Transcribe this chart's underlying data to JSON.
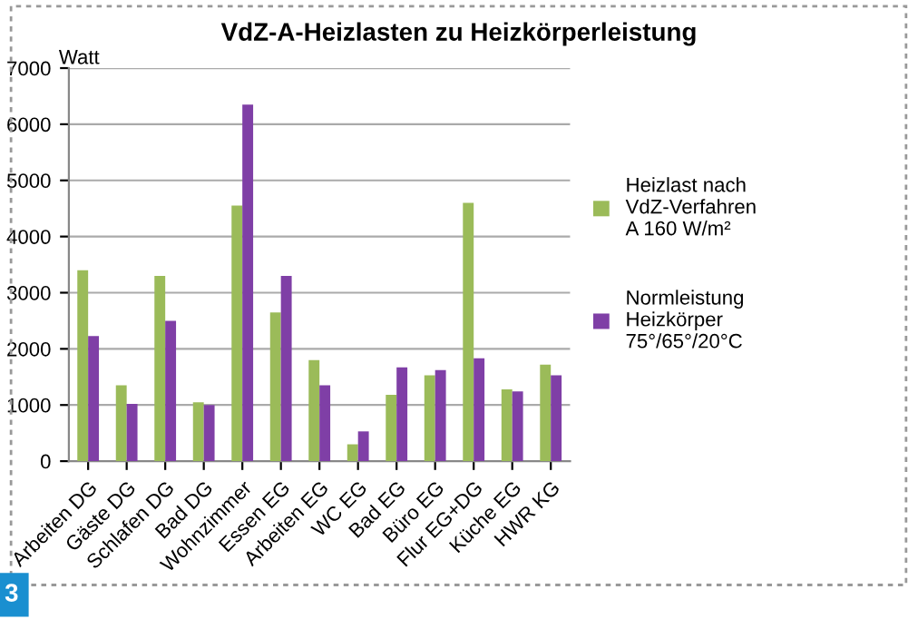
{
  "chart_data": {
    "type": "bar",
    "title": "VdZ-A-Heizlasten zu Heizkörperleistung",
    "ylabel": "Watt",
    "categories": [
      "Arbeiten DG",
      "Gäste DG",
      "Schlafen DG",
      "Bad DG",
      "Wohnzimmer",
      "Essen EG",
      "Arbeiten EG",
      "WC EG",
      "Bad EG",
      "Büro EG",
      "Flur EG+DG",
      "Küche EG",
      "HWR KG"
    ],
    "series": [
      {
        "name": "Heizlast nach\nVdZ-Verfahren\nA 160 W/m²",
        "color": "#9bbb59",
        "values": [
          3400,
          1350,
          3300,
          1050,
          4550,
          2650,
          1800,
          300,
          1180,
          1530,
          4600,
          1280,
          1720
        ]
      },
      {
        "name": "Normleistung\nHeizkörper\n75°/65°/20°C",
        "color": "#7f3fa6",
        "values": [
          2230,
          1020,
          2500,
          1000,
          6350,
          3300,
          1350,
          530,
          1670,
          1620,
          1830,
          1240,
          1530
        ]
      }
    ],
    "ylim": [
      0,
      7000
    ],
    "yticks": [
      0,
      1000,
      2000,
      3000,
      4000,
      5000,
      6000,
      7000
    ],
    "grid": "y",
    "legend": "right",
    "annotations": [
      "3"
    ]
  }
}
